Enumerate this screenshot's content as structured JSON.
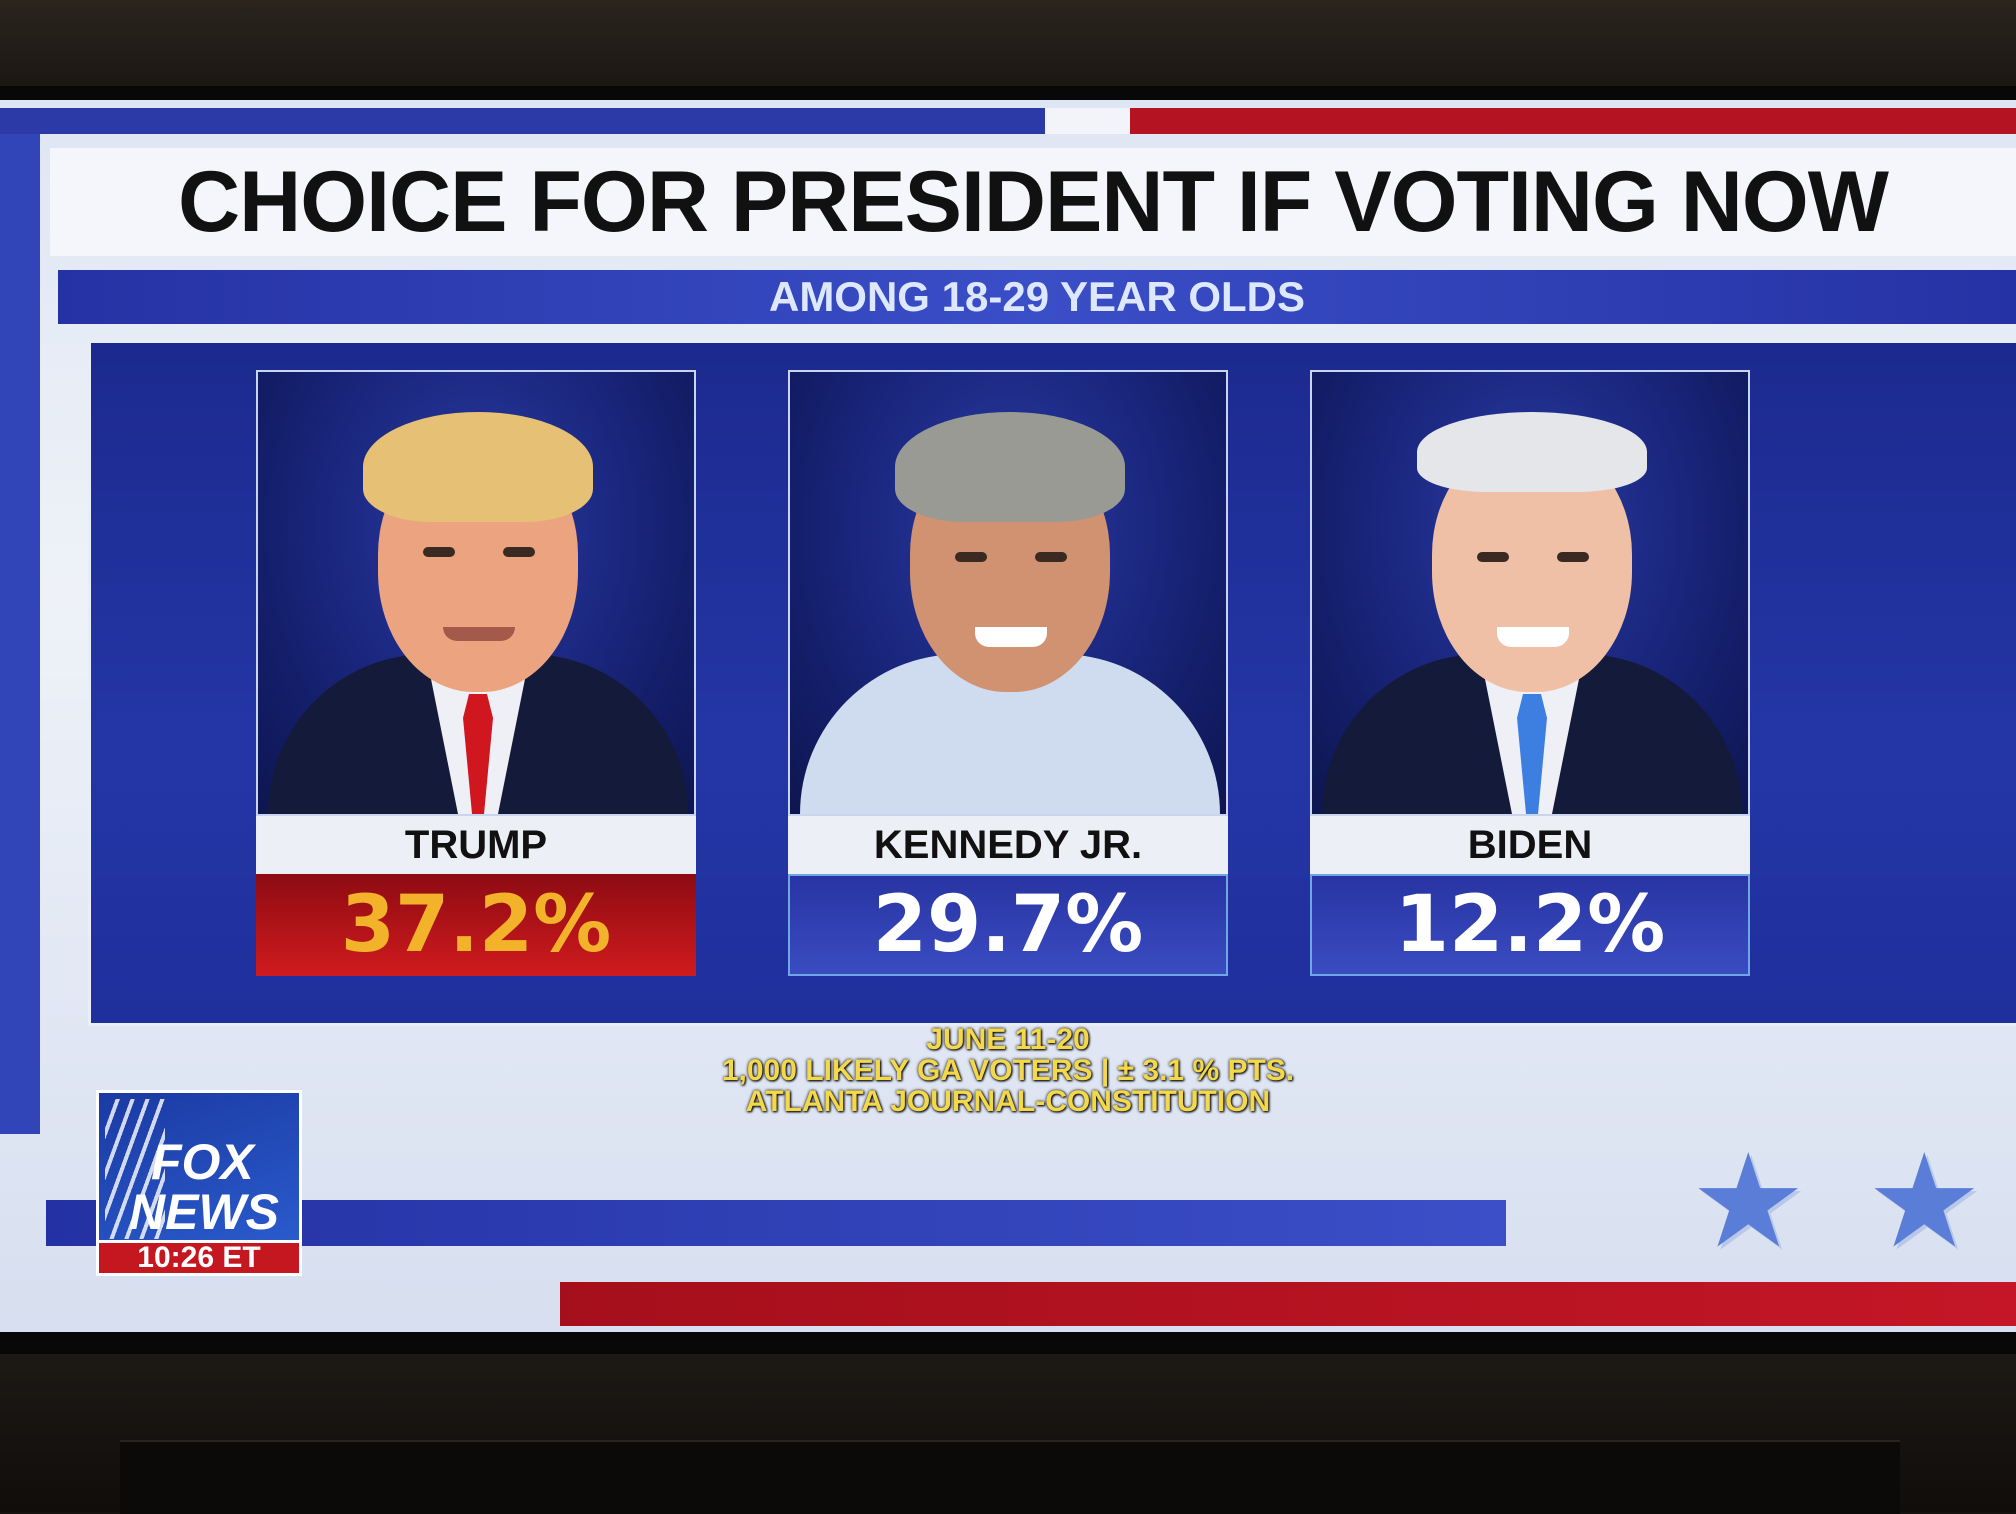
{
  "graphic": {
    "title": "CHOICE FOR PRESIDENT IF VOTING NOW",
    "subtitle": "AMONG 18-29 YEAR OLDS",
    "candidates": [
      {
        "name": "TRUMP",
        "percent": "37.2%",
        "accent": "#c41626"
      },
      {
        "name": "KENNEDY JR.",
        "percent": "29.7%",
        "accent": "#2f3fb5"
      },
      {
        "name": "BIDEN",
        "percent": "12.2%",
        "accent": "#2f3fb5"
      }
    ],
    "footer": {
      "dates": "JUNE 11-20",
      "sample": "1,000 LIKELY GA VOTERS | ± 3.1 % PTS.",
      "source": "ATLANTA JOURNAL-CONSTITUTION"
    }
  },
  "network": {
    "logo_line1": "FOX",
    "logo_line2": "NEWS",
    "clock": "10:26 ET"
  },
  "icons": [
    "star-icon",
    "star-icon"
  ],
  "colors": {
    "brand_blue": "#2532a4",
    "brand_red": "#c41626",
    "footer_yellow": "#f3d94a",
    "percent_gold": "#f2b32a"
  }
}
